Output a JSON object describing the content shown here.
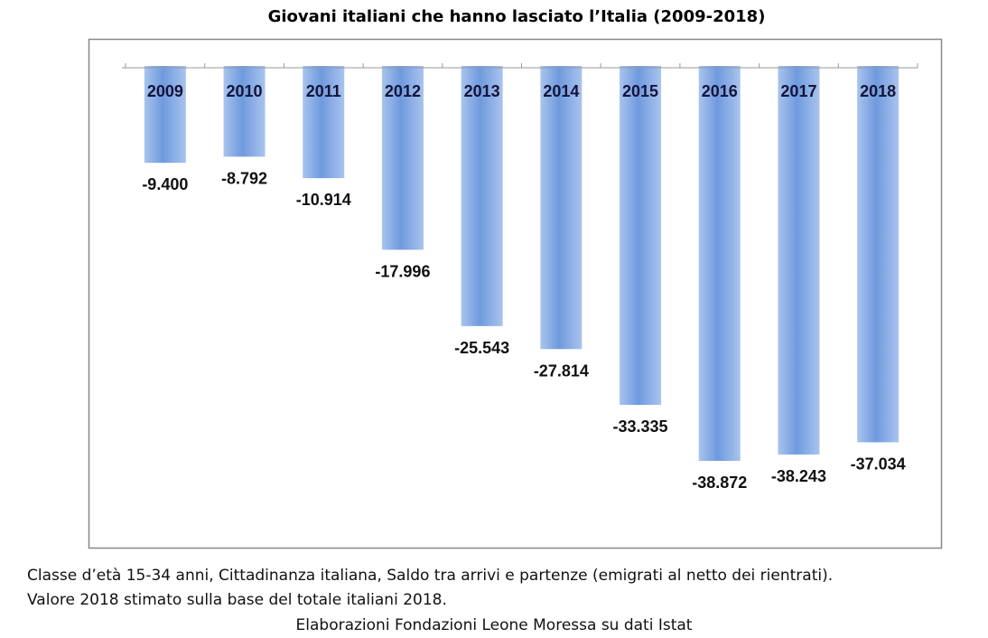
{
  "chart_data": {
    "type": "bar",
    "title": "Giovani italiani che hanno lasciato l’Italia (2009-2018)",
    "categories": [
      "2009",
      "2010",
      "2011",
      "2012",
      "2013",
      "2014",
      "2015",
      "2016",
      "2017",
      "2018"
    ],
    "values": [
      -9400,
      -8792,
      -10914,
      -17996,
      -25543,
      -27814,
      -33335,
      -38872,
      -38243,
      -37034
    ],
    "value_labels": [
      "-9.400",
      "-8.792",
      "-10.914",
      "-17.996",
      "-25.543",
      "-27.814",
      "-33.335",
      "-38.872",
      "-38.243",
      "-37.034"
    ],
    "xlabel": "",
    "ylabel": "",
    "ylim": [
      -45000,
      0
    ],
    "grid": false,
    "bar_color": "#7ea6e2"
  },
  "notes": {
    "line1": "Classe d’età 15-34 anni, Cittadinanza italiana, Saldo tra arrivi e partenze (emigrati al netto dei rientrati).",
    "line2": "Valore 2018 stimato sulla base del totale italiani 2018.",
    "credit": "Elaborazioni Fondazioni Leone Moressa su dati Istat"
  }
}
